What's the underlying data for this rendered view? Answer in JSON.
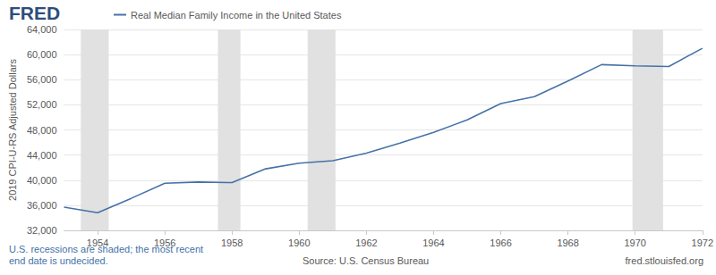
{
  "chart_data": {
    "type": "line",
    "logo": "FRED",
    "title": "Real Median Family Income in the United States",
    "y_label": "2019 CPI-U-RS Adjusted Dollars",
    "x": [
      1953,
      1954,
      1955,
      1956,
      1957,
      1958,
      1959,
      1960,
      1961,
      1962,
      1963,
      1964,
      1965,
      1966,
      1967,
      1968,
      1969,
      1970,
      1971,
      1972
    ],
    "series": [
      {
        "name": "Real Median Family Income in the United States",
        "color": "#4572a7",
        "values": [
          35700,
          34800,
          37100,
          39500,
          39700,
          39600,
          41800,
          42700,
          43100,
          44300,
          45900,
          47600,
          49600,
          52200,
          53300,
          55800,
          58400,
          58200,
          58100,
          61000
        ]
      }
    ],
    "xlim": [
      1953,
      1972
    ],
    "xticks": [
      1954,
      1956,
      1958,
      1960,
      1962,
      1964,
      1966,
      1968,
      1970,
      1972
    ],
    "ylim": [
      32000,
      64000
    ],
    "yticks": [
      {
        "value": 32000,
        "label": "32,000"
      },
      {
        "value": 36000,
        "label": "36,000"
      },
      {
        "value": 40000,
        "label": "40,000"
      },
      {
        "value": 44000,
        "label": "44,000"
      },
      {
        "value": 48000,
        "label": "48,000"
      },
      {
        "value": 52000,
        "label": "52,000"
      },
      {
        "value": 56000,
        "label": "56,000"
      },
      {
        "value": 60000,
        "label": "60,000"
      },
      {
        "value": 64000,
        "label": "64,000"
      }
    ],
    "recessions": [
      [
        1953.5,
        1954.33
      ],
      [
        1957.58,
        1958.25
      ],
      [
        1960.25,
        1961.08
      ],
      [
        1969.92,
        1970.83
      ]
    ],
    "notes": [
      "U.S. recessions are shaded; the most recent",
      "end date is undecided."
    ],
    "source": "Source: U.S. Census Bureau",
    "site": "fred.stlouisfed.org",
    "grid": true,
    "legend": "top-left"
  }
}
